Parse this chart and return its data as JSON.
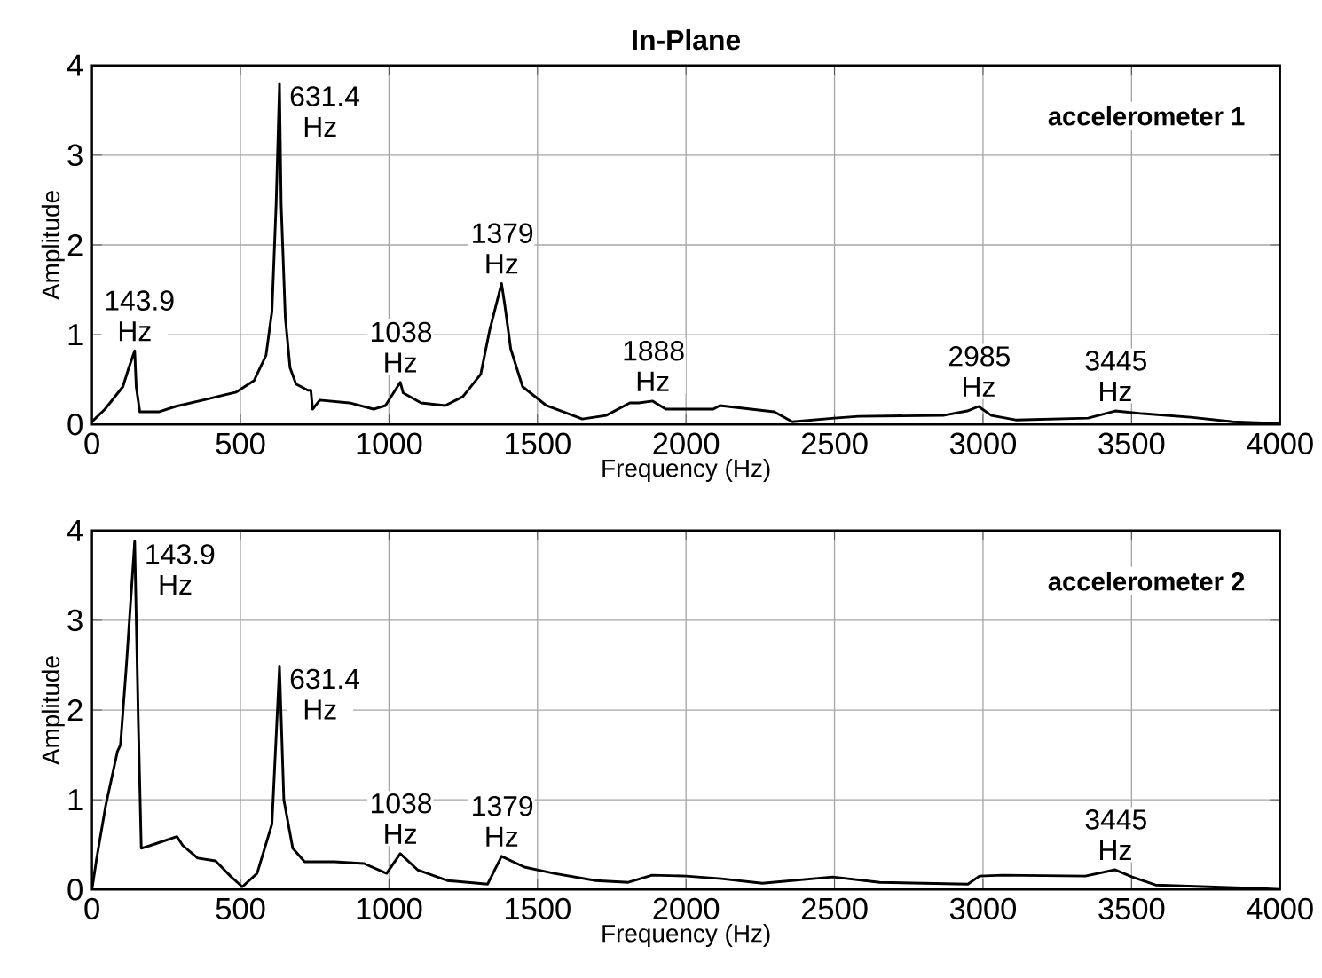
{
  "chart_data": [
    {
      "type": "line",
      "title": "In-Plane",
      "xlabel": "Frequency (Hz)",
      "ylabel": "Amplitude",
      "xlim": [
        0,
        4000
      ],
      "ylim": [
        0,
        4
      ],
      "xticks": [
        0,
        500,
        1000,
        1500,
        2000,
        2500,
        3000,
        3500,
        4000
      ],
      "yticks": [
        0,
        1,
        2,
        3,
        4
      ],
      "grid": true,
      "marker": "none",
      "line_style": "solid",
      "series": [
        {
          "name": "accelerometer 1",
          "color": "#000000",
          "x": [
            0,
            44,
            104,
            124,
            143.9,
            149,
            161,
            225,
            281,
            386,
            486,
            546,
            586,
            606,
            620,
            631.4,
            637,
            651,
            667,
            687,
            727,
            737,
            743,
            767,
            867,
            948,
            988,
            1038,
            1048,
            1108,
            1189,
            1249,
            1309,
            1339,
            1379,
            1390,
            1410,
            1450,
            1530,
            1651,
            1731,
            1811,
            1841,
            1888,
            1932,
            2092,
            2114,
            2297,
            2358,
            2500,
            2581,
            2866,
            2947,
            2985,
            3028,
            3110,
            3354,
            3445,
            3537,
            3699,
            3841,
            4000
          ],
          "values": [
            0.03,
            0.17,
            0.42,
            0.63,
            0.82,
            0.42,
            0.14,
            0.14,
            0.2,
            0.28,
            0.36,
            0.49,
            0.77,
            1.26,
            2.45,
            3.8,
            2.45,
            1.19,
            0.63,
            0.45,
            0.38,
            0.38,
            0.17,
            0.27,
            0.24,
            0.17,
            0.21,
            0.47,
            0.35,
            0.24,
            0.21,
            0.31,
            0.56,
            1.05,
            1.57,
            1.33,
            0.84,
            0.42,
            0.21,
            0.06,
            0.1,
            0.24,
            0.24,
            0.26,
            0.17,
            0.17,
            0.21,
            0.14,
            0.03,
            0.07,
            0.09,
            0.1,
            0.15,
            0.2,
            0.1,
            0.05,
            0.07,
            0.15,
            0.12,
            0.08,
            0.03,
            0.01
          ]
        }
      ],
      "annotations": [
        {
          "text": "143.9 Hz",
          "x": 143.9,
          "y": 0.82
        },
        {
          "text": "631.4 Hz",
          "x": 631.4,
          "y": 3.8
        },
        {
          "text": "1038 Hz",
          "x": 1038,
          "y": 0.47
        },
        {
          "text": "1379 Hz",
          "x": 1379,
          "y": 1.57
        },
        {
          "text": "1888 Hz",
          "x": 1888,
          "y": 0.26
        },
        {
          "text": "2985 Hz",
          "x": 2985,
          "y": 0.2
        },
        {
          "text": "3445 Hz",
          "x": 3445,
          "y": 0.15
        }
      ]
    },
    {
      "type": "line",
      "xlabel": "Frequency (Hz)",
      "ylabel": "Amplitude",
      "xlim": [
        0,
        4000
      ],
      "ylim": [
        0,
        4
      ],
      "xticks": [
        0,
        500,
        1000,
        1500,
        2000,
        2500,
        3000,
        3500,
        4000
      ],
      "yticks": [
        0,
        1,
        2,
        3,
        4
      ],
      "grid": true,
      "marker": "none",
      "line_style": "solid",
      "series": [
        {
          "name": "accelerometer  2",
          "color": "#000000",
          "x": [
            0,
            16,
            46,
            86,
            96,
            116,
            143.9,
            156,
            166,
            196,
            286,
            306,
            356,
            416,
            466,
            506,
            556,
            606,
            631.4,
            646,
            676,
            716,
            816,
            916,
            992,
            1038,
            1096,
            1196,
            1332,
            1356,
            1379,
            1456,
            1556,
            1696,
            1806,
            1886,
            2000,
            2119,
            2257,
            2494,
            2652,
            2949,
            2988,
            3067,
            3344,
            3445,
            3502,
            3581,
            3937,
            4000
          ],
          "values": [
            0,
            0.35,
            0.93,
            1.54,
            1.61,
            2.5,
            3.88,
            1.88,
            0.46,
            0.49,
            0.59,
            0.49,
            0.35,
            0.32,
            0.15,
            0.03,
            0.18,
            0.73,
            2.49,
            1,
            0.46,
            0.31,
            0.31,
            0.29,
            0.18,
            0.4,
            0.22,
            0.1,
            0.06,
            0.22,
            0.37,
            0.25,
            0.18,
            0.1,
            0.08,
            0.16,
            0.15,
            0.12,
            0.07,
            0.14,
            0.08,
            0.06,
            0.15,
            0.16,
            0.15,
            0.22,
            0.14,
            0.05,
            0.01,
            0
          ]
        }
      ],
      "annotations": [
        {
          "text": "143.9 Hz",
          "x": 143.9,
          "y": 3.88
        },
        {
          "text": "631.4 Hz",
          "x": 631.4,
          "y": 2.49
        },
        {
          "text": "1038 Hz",
          "x": 1038,
          "y": 0.4
        },
        {
          "text": "1379 Hz",
          "x": 1379,
          "y": 0.37
        },
        {
          "text": "3445 Hz",
          "x": 3445,
          "y": 0.22
        }
      ]
    }
  ]
}
